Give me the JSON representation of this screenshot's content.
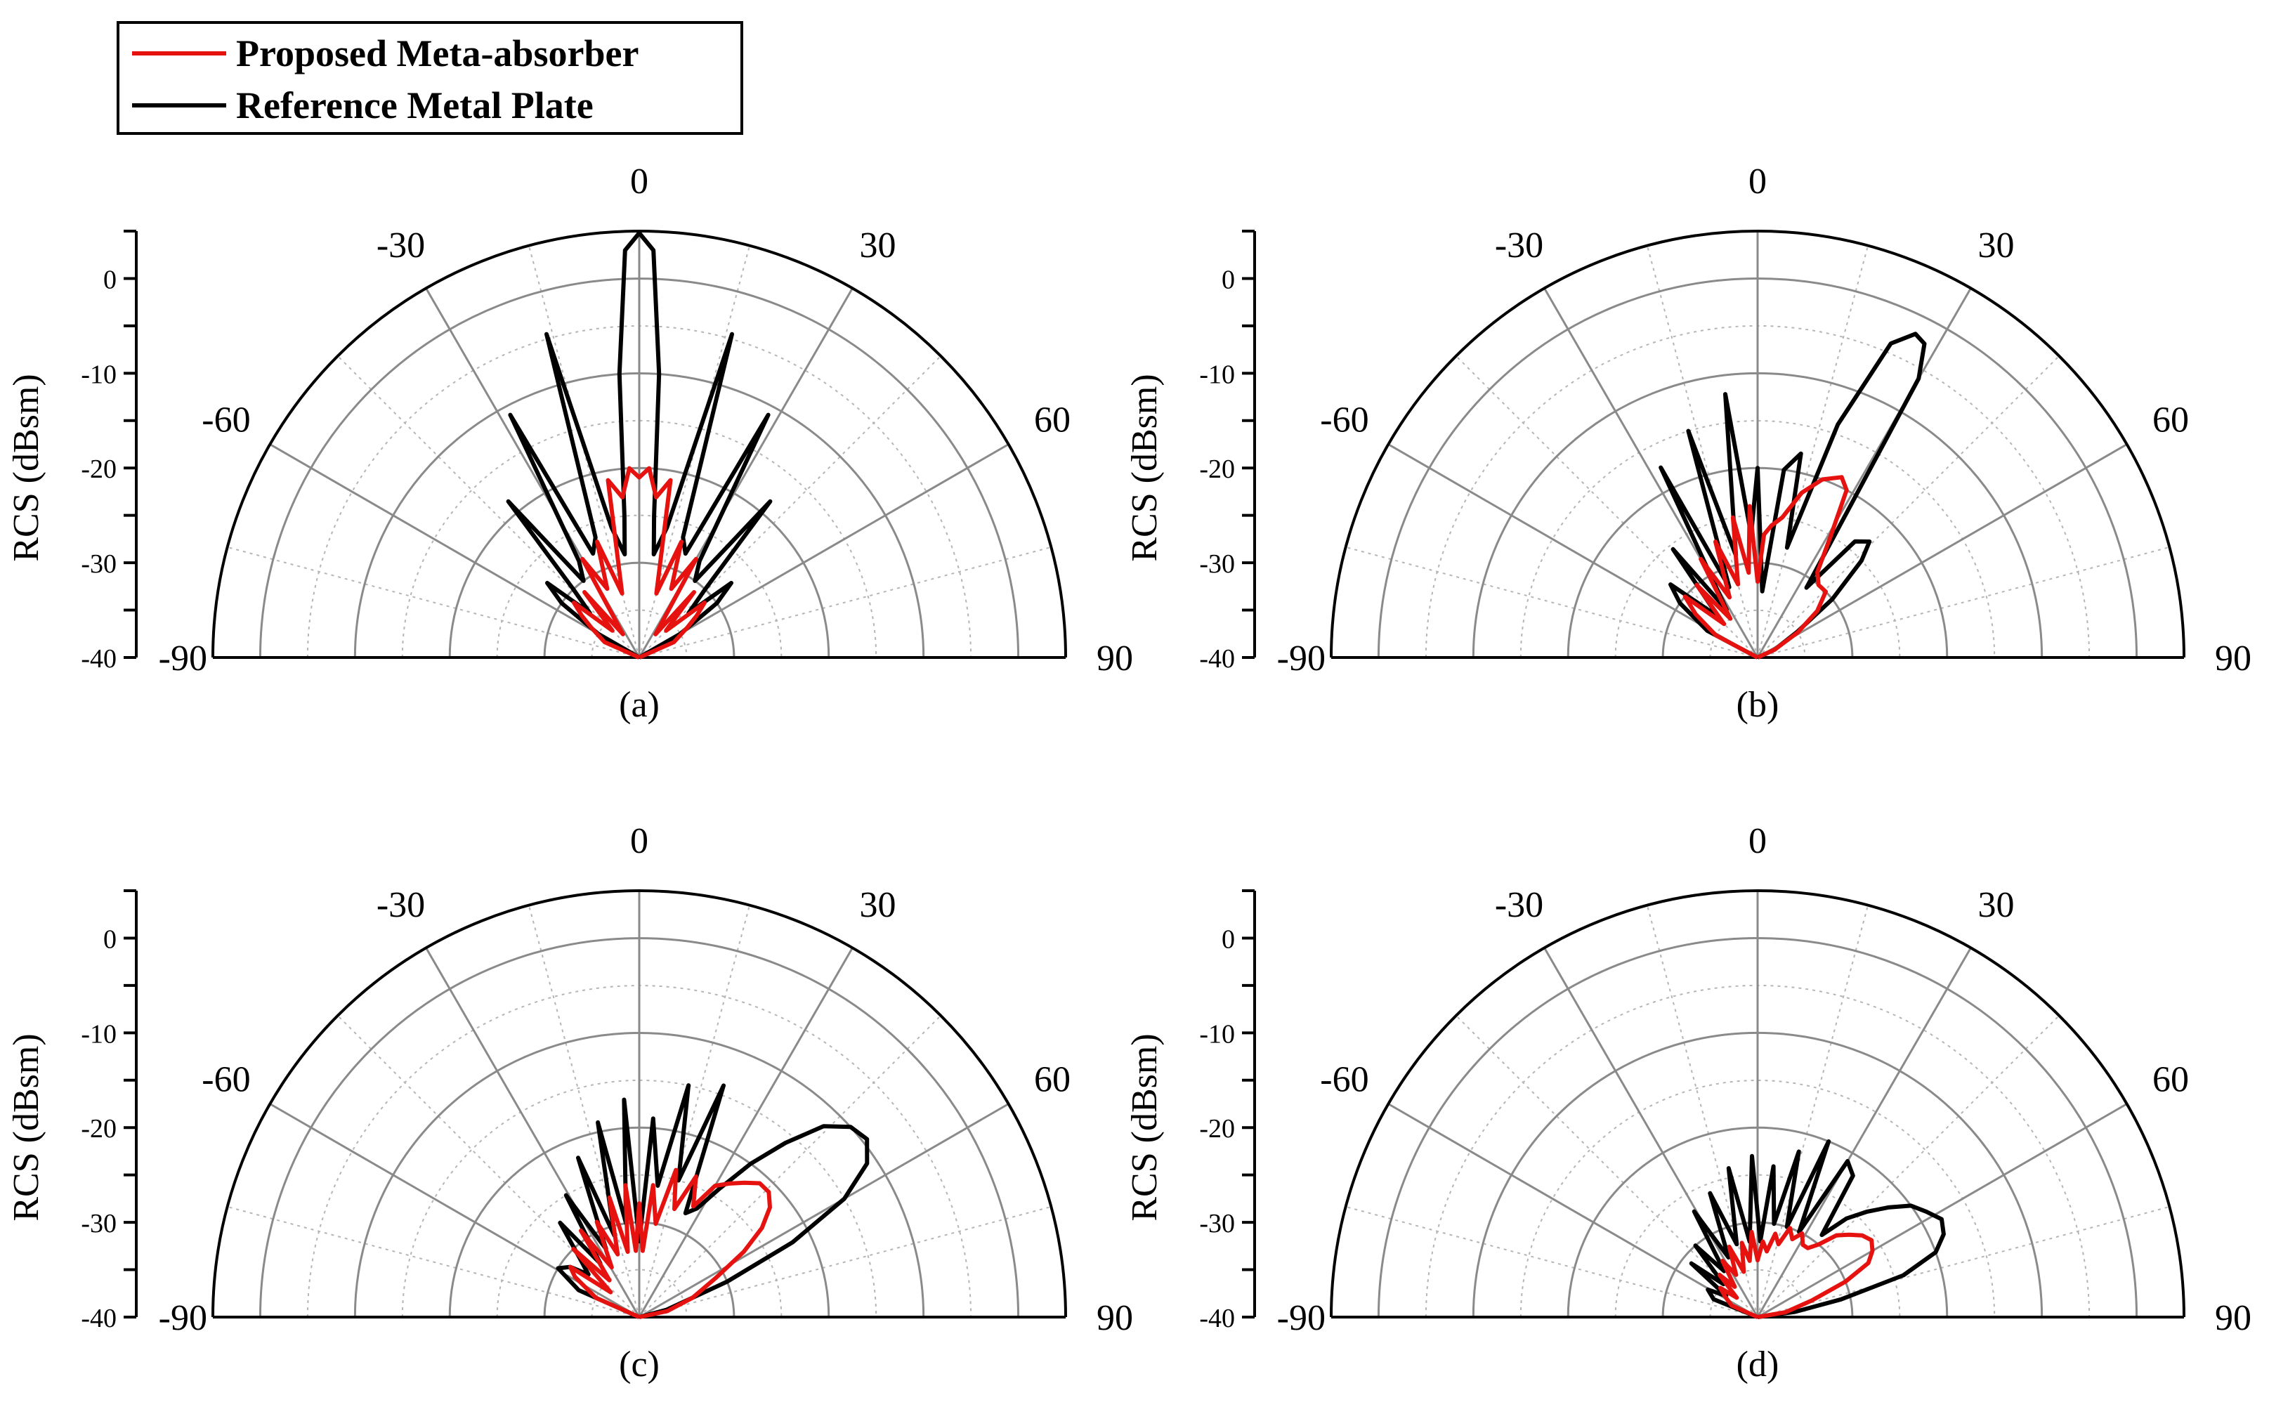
{
  "legend": {
    "items": [
      {
        "label": "Proposed Meta-absorber",
        "color": "#e6120f"
      },
      {
        "label": "Reference Metal Plate",
        "color": "#000000"
      }
    ]
  },
  "colors": {
    "grid_major": "#8a8a8a",
    "grid_minor": "#b5b5b5",
    "axis": "#000000"
  },
  "chart_data": [
    {
      "type": "line",
      "projection": "polar",
      "panel_label": "(a)",
      "ylabel": "RCS (dBsm)",
      "ylim": [
        -40,
        5
      ],
      "yticks": [
        "0",
        "-10",
        "-20",
        "-30",
        "-40"
      ],
      "angle_ticks": [
        "-90",
        "-60",
        "-30",
        "0",
        "30",
        "60",
        "90"
      ],
      "series": [
        {
          "name": "Reference Metal Plate",
          "color": "#000000",
          "angles": [
            -90,
            -60,
            -55,
            -51,
            -48,
            -44,
            -40,
            -36,
            -32,
            -28,
            -24,
            -20,
            -16,
            -12,
            -8,
            -6,
            -4,
            -2,
            0,
            2,
            4,
            6,
            8,
            12,
            16,
            20,
            24,
            28,
            32,
            36,
            40,
            44,
            48,
            51,
            55,
            60,
            90
          ],
          "values": [
            -40,
            -35,
            -30,
            -27.5,
            -33,
            -30,
            -18.5,
            -30,
            -28,
            -11,
            -28,
            -26.5,
            -4.5,
            -26,
            -29,
            -25,
            -10,
            3,
            4.8,
            3,
            -10,
            -25,
            -29,
            -26,
            -4.5,
            -26.5,
            -28,
            -11,
            -28,
            -30,
            -18.5,
            -30,
            -33,
            -27.5,
            -30,
            -35,
            -40
          ]
        },
        {
          "name": "Proposed Meta-absorber",
          "color": "#e6120f",
          "angles": [
            -90,
            -66,
            -58,
            -54,
            -50,
            -45,
            -40,
            -35,
            -30,
            -25,
            -20,
            -15,
            -10,
            -6,
            -3,
            0,
            3,
            6,
            10,
            15,
            20,
            25,
            30,
            35,
            40,
            45,
            50,
            54,
            58,
            66,
            90
          ],
          "values": [
            -40,
            -36,
            -34,
            -32.5,
            -31,
            -36,
            -31,
            -37,
            -28,
            -32,
            -27,
            -33,
            -21,
            -23,
            -20,
            -21,
            -20,
            -23,
            -21,
            -33,
            -27,
            -32,
            -28,
            -37,
            -31,
            -36,
            -31,
            -32.5,
            -34,
            -36,
            -40
          ]
        }
      ]
    },
    {
      "type": "line",
      "projection": "polar",
      "panel_label": "(b)",
      "ylabel": "RCS (dBsm)",
      "ylim": [
        -40,
        5
      ],
      "yticks": [
        "0",
        "-10",
        "-20",
        "-30",
        "-40"
      ],
      "angle_ticks": [
        "-90",
        "-60",
        "-30",
        "0",
        "30",
        "60",
        "90"
      ],
      "series": [
        {
          "name": "Reference Metal Plate",
          "color": "#000000",
          "angles": [
            -90,
            -62,
            -55,
            -50,
            -44,
            -38,
            -33,
            -27,
            -22,
            -17,
            -12,
            -7,
            -3,
            0,
            4,
            8,
            12,
            15,
            19,
            23,
            26,
            28,
            30,
            35,
            40,
            44,
            47,
            52,
            57,
            65,
            90
          ],
          "values": [
            -40,
            -34,
            -30,
            -28,
            -34,
            -25.5,
            -34,
            -17.5,
            -32,
            -15,
            -29,
            -12,
            -27,
            -20,
            -33,
            -20,
            -18,
            -28,
            -14,
            -4,
            -2,
            -2.5,
            -6,
            -31,
            -24,
            -23,
            -25,
            -30,
            -35,
            -38,
            -40
          ]
        },
        {
          "name": "Proposed Meta-absorber",
          "color": "#e6120f",
          "angles": [
            -90,
            -62,
            -55,
            -50,
            -45,
            -40,
            -35,
            -30,
            -25,
            -20,
            -15,
            -10,
            -6,
            -3,
            0,
            3,
            6,
            10,
            15,
            20,
            25,
            28,
            31,
            35,
            40,
            46,
            52,
            58,
            65,
            90
          ],
          "values": [
            -40,
            -35,
            -32,
            -30,
            -35,
            -30,
            -35,
            -28,
            -33,
            -27,
            -32,
            -25,
            -31,
            -24,
            -32,
            -27,
            -26,
            -25,
            -22,
            -20,
            -19,
            -20,
            -25,
            -29,
            -30,
            -30,
            -32,
            -35,
            -38,
            -40
          ]
        }
      ]
    },
    {
      "type": "line",
      "projection": "polar",
      "panel_label": "(c)",
      "ylabel": "RCS (dBsm)",
      "ylim": [
        -40,
        5
      ],
      "yticks": [
        "0",
        "-10",
        "-20",
        "-30",
        "-40"
      ],
      "angle_ticks": [
        "-90",
        "-60",
        "-30",
        "0",
        "30",
        "60",
        "90"
      ],
      "series": [
        {
          "name": "Reference Metal Plate",
          "color": "#000000",
          "angles": [
            -90,
            -66,
            -59,
            -54,
            -50,
            -45,
            -40,
            -36,
            -31,
            -26,
            -21,
            -17,
            -12,
            -8,
            -4,
            0,
            4,
            8,
            12,
            16,
            20,
            24,
            28,
            32,
            36,
            40,
            44,
            48,
            52,
            56,
            60,
            64,
            68,
            75,
            90
          ],
          "values": [
            -40,
            -33,
            -30,
            -31,
            -33,
            -31,
            -27,
            -33,
            -25,
            -32,
            -22,
            -31,
            -19,
            -30,
            -17,
            -32,
            -19,
            -26,
            -15,
            -25,
            -14,
            -28,
            -27,
            -24,
            -20,
            -16,
            -12,
            -10,
            -9.5,
            -11,
            -15,
            -22,
            -30,
            -37,
            -40
          ]
        },
        {
          "name": "Proposed Meta-absorber",
          "color": "#e6120f",
          "angles": [
            -90,
            -66,
            -58,
            -54,
            -49,
            -44,
            -39,
            -34,
            -29,
            -24,
            -19,
            -14,
            -10,
            -6,
            -3,
            0,
            3,
            6,
            10,
            14,
            18,
            22,
            26,
            30,
            34,
            38,
            42,
            46,
            50,
            54,
            58,
            63,
            70,
            78,
            90
          ],
          "values": [
            -40,
            -35,
            -32,
            -31,
            -36,
            -30,
            -35,
            -29,
            -34,
            -29,
            -33,
            -27,
            -33,
            -26,
            -33,
            -28,
            -33,
            -26,
            -30,
            -24,
            -28,
            -24,
            -27,
            -24,
            -23,
            -22,
            -21,
            -21,
            -22,
            -24,
            -27,
            -31,
            -34,
            -37,
            -40
          ]
        }
      ]
    },
    {
      "type": "line",
      "projection": "polar",
      "panel_label": "(d)",
      "ylabel": "RCS (dBsm)",
      "ylim": [
        -40,
        5
      ],
      "yticks": [
        "0",
        "-10",
        "-20",
        "-30",
        "-40"
      ],
      "angle_ticks": [
        "-90",
        "-60",
        "-30",
        "0",
        "30",
        "60",
        "90"
      ],
      "series": [
        {
          "name": "Reference Metal Plate",
          "color": "#000000",
          "angles": [
            -90,
            -68,
            -61,
            -56,
            -51,
            -46,
            -41,
            -36,
            -31,
            -26,
            -21,
            -16,
            -11,
            -6,
            -2,
            2,
            6,
            10,
            14,
            18,
            22,
            26,
            30,
            34,
            38,
            42,
            46,
            50,
            54,
            58,
            62,
            66,
            70,
            74,
            78,
            82,
            90
          ],
          "values": [
            -40,
            -35,
            -34,
            -36,
            -31,
            -35,
            -30,
            -34,
            -27,
            -33,
            -26,
            -32,
            -24,
            -32,
            -23,
            -32,
            -24,
            -30,
            -22,
            -30,
            -20,
            -30,
            -21,
            -22,
            -29,
            -26,
            -24,
            -22,
            -20,
            -19,
            -18,
            -18.5,
            -20,
            -24,
            -31,
            -36,
            -40
          ]
        },
        {
          "name": "Proposed Meta-absorber",
          "color": "#e6120f",
          "angles": [
            -90,
            -66,
            -58,
            -52,
            -47,
            -42,
            -37,
            -32,
            -27,
            -22,
            -17,
            -12,
            -8,
            -4,
            0,
            4,
            8,
            12,
            16,
            20,
            24,
            28,
            32,
            36,
            40,
            44,
            48,
            52,
            56,
            60,
            64,
            68,
            73,
            80,
            90
          ],
          "values": [
            -40,
            -37,
            -36,
            -35,
            -37,
            -34,
            -36,
            -33,
            -35,
            -32,
            -35,
            -32,
            -34,
            -31,
            -34,
            -32,
            -33,
            -31,
            -32,
            -30,
            -31,
            -30,
            -31,
            -31,
            -30,
            -28,
            -27,
            -26,
            -25.5,
            -26,
            -27,
            -30,
            -34,
            -37,
            -40
          ]
        }
      ]
    }
  ]
}
